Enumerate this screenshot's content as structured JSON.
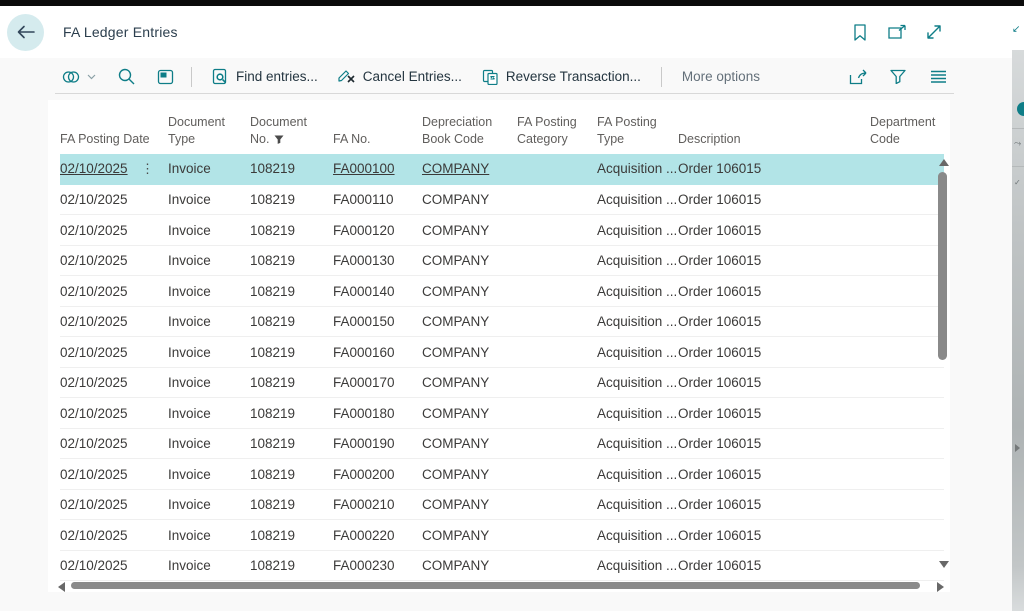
{
  "page": {
    "title": "FA Ledger Entries"
  },
  "colors": {
    "accent": "#0e7d87",
    "selected_row": "#b2e4e7",
    "title_text": "#2b3e4d"
  },
  "header_actions": [
    {
      "icon": "bookmark-icon"
    },
    {
      "icon": "open-in-new-window-icon"
    },
    {
      "icon": "expand-icon"
    }
  ],
  "toolbar": {
    "left_icons": [
      "related-entries-icon",
      "search-icon",
      "analysis-view-icon"
    ],
    "actions": [
      {
        "label": "Find entries...",
        "icon": "find-entries-icon"
      },
      {
        "label": "Cancel Entries...",
        "icon": "cancel-entries-icon"
      },
      {
        "label": "Reverse Transaction...",
        "icon": "reverse-transaction-icon"
      }
    ],
    "more_options_label": "More options",
    "right_icons": [
      "share-icon",
      "filter-icon",
      "choose-columns-icon"
    ]
  },
  "table": {
    "columns": [
      {
        "label": "FA Posting Date",
        "filtered": false
      },
      {
        "label": "Document Type",
        "filtered": false
      },
      {
        "label": "Document No.",
        "filtered": true
      },
      {
        "label": "FA No.",
        "filtered": false
      },
      {
        "label": "Depreciation Book Code",
        "filtered": false
      },
      {
        "label": "FA Posting Category",
        "filtered": false
      },
      {
        "label": "FA Posting Type",
        "filtered": false
      },
      {
        "label": "Description",
        "filtered": false
      },
      {
        "label": "Department Code",
        "filtered": false
      }
    ],
    "selected_row_index": 0,
    "rows": [
      {
        "fa_posting_date": "02/10/2025",
        "document_type": "Invoice",
        "document_no": "108219",
        "fa_no": "FA000100",
        "depreciation_book_code": "COMPANY",
        "fa_posting_category": "",
        "fa_posting_type": "Acquisition ...",
        "description": "Order 106015",
        "department_code": ""
      },
      {
        "fa_posting_date": "02/10/2025",
        "document_type": "Invoice",
        "document_no": "108219",
        "fa_no": "FA000110",
        "depreciation_book_code": "COMPANY",
        "fa_posting_category": "",
        "fa_posting_type": "Acquisition ...",
        "description": "Order 106015",
        "department_code": ""
      },
      {
        "fa_posting_date": "02/10/2025",
        "document_type": "Invoice",
        "document_no": "108219",
        "fa_no": "FA000120",
        "depreciation_book_code": "COMPANY",
        "fa_posting_category": "",
        "fa_posting_type": "Acquisition ...",
        "description": "Order 106015",
        "department_code": ""
      },
      {
        "fa_posting_date": "02/10/2025",
        "document_type": "Invoice",
        "document_no": "108219",
        "fa_no": "FA000130",
        "depreciation_book_code": "COMPANY",
        "fa_posting_category": "",
        "fa_posting_type": "Acquisition ...",
        "description": "Order 106015",
        "department_code": ""
      },
      {
        "fa_posting_date": "02/10/2025",
        "document_type": "Invoice",
        "document_no": "108219",
        "fa_no": "FA000140",
        "depreciation_book_code": "COMPANY",
        "fa_posting_category": "",
        "fa_posting_type": "Acquisition ...",
        "description": "Order 106015",
        "department_code": ""
      },
      {
        "fa_posting_date": "02/10/2025",
        "document_type": "Invoice",
        "document_no": "108219",
        "fa_no": "FA000150",
        "depreciation_book_code": "COMPANY",
        "fa_posting_category": "",
        "fa_posting_type": "Acquisition ...",
        "description": "Order 106015",
        "department_code": ""
      },
      {
        "fa_posting_date": "02/10/2025",
        "document_type": "Invoice",
        "document_no": "108219",
        "fa_no": "FA000160",
        "depreciation_book_code": "COMPANY",
        "fa_posting_category": "",
        "fa_posting_type": "Acquisition ...",
        "description": "Order 106015",
        "department_code": ""
      },
      {
        "fa_posting_date": "02/10/2025",
        "document_type": "Invoice",
        "document_no": "108219",
        "fa_no": "FA000170",
        "depreciation_book_code": "COMPANY",
        "fa_posting_category": "",
        "fa_posting_type": "Acquisition ...",
        "description": "Order 106015",
        "department_code": ""
      },
      {
        "fa_posting_date": "02/10/2025",
        "document_type": "Invoice",
        "document_no": "108219",
        "fa_no": "FA000180",
        "depreciation_book_code": "COMPANY",
        "fa_posting_category": "",
        "fa_posting_type": "Acquisition ...",
        "description": "Order 106015",
        "department_code": ""
      },
      {
        "fa_posting_date": "02/10/2025",
        "document_type": "Invoice",
        "document_no": "108219",
        "fa_no": "FA000190",
        "depreciation_book_code": "COMPANY",
        "fa_posting_category": "",
        "fa_posting_type": "Acquisition ...",
        "description": "Order 106015",
        "department_code": ""
      },
      {
        "fa_posting_date": "02/10/2025",
        "document_type": "Invoice",
        "document_no": "108219",
        "fa_no": "FA000200",
        "depreciation_book_code": "COMPANY",
        "fa_posting_category": "",
        "fa_posting_type": "Acquisition ...",
        "description": "Order 106015",
        "department_code": ""
      },
      {
        "fa_posting_date": "02/10/2025",
        "document_type": "Invoice",
        "document_no": "108219",
        "fa_no": "FA000210",
        "depreciation_book_code": "COMPANY",
        "fa_posting_category": "",
        "fa_posting_type": "Acquisition ...",
        "description": "Order 106015",
        "department_code": ""
      },
      {
        "fa_posting_date": "02/10/2025",
        "document_type": "Invoice",
        "document_no": "108219",
        "fa_no": "FA000220",
        "depreciation_book_code": "COMPANY",
        "fa_posting_category": "",
        "fa_posting_type": "Acquisition ...",
        "description": "Order 106015",
        "department_code": ""
      },
      {
        "fa_posting_date": "02/10/2025",
        "document_type": "Invoice",
        "document_no": "108219",
        "fa_no": "FA000230",
        "depreciation_book_code": "COMPANY",
        "fa_posting_category": "",
        "fa_posting_type": "Acquisition ...",
        "description": "Order 106015",
        "department_code": ""
      }
    ]
  }
}
